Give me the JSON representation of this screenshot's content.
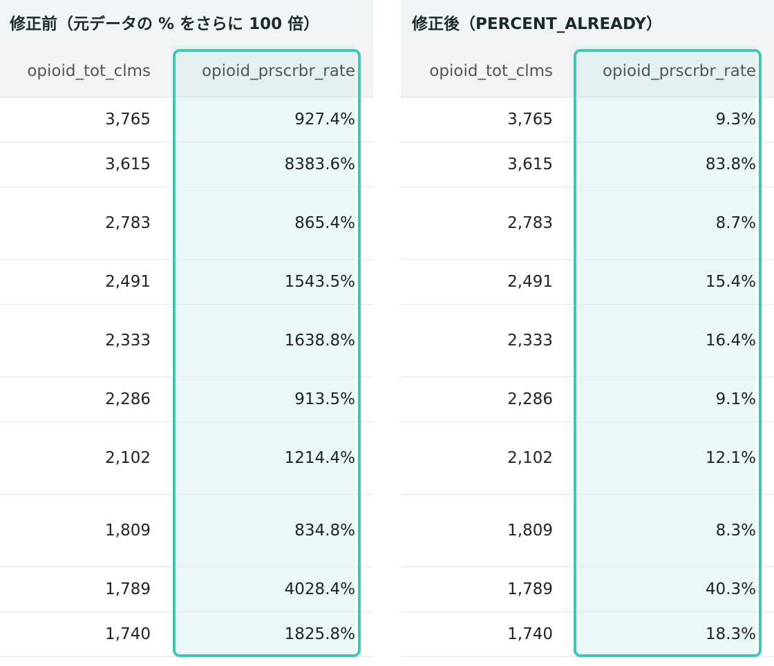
{
  "panels": [
    {
      "title": "修正前（元データの % をさらに 100 倍）",
      "columns": [
        "opioid_tot_clms",
        "opioid_prscrbr_rate"
      ],
      "rows": [
        [
          "3,765",
          "927.4%"
        ],
        [
          "3,615",
          "8383.6%"
        ],
        [
          "2,783",
          "865.4%"
        ],
        [
          "2,491",
          "1543.5%"
        ],
        [
          "2,333",
          "1638.8%"
        ],
        [
          "2,286",
          "913.5%"
        ],
        [
          "2,102",
          "1214.4%"
        ],
        [
          "1,809",
          "834.8%"
        ],
        [
          "1,789",
          "4028.4%"
        ],
        [
          "1,740",
          "1825.8%"
        ]
      ]
    },
    {
      "title": "修正後（PERCENT_ALREADY）",
      "columns": [
        "opioid_tot_clms",
        "opioid_prscrbr_rate"
      ],
      "rows": [
        [
          "3,765",
          "9.3%"
        ],
        [
          "3,615",
          "83.8%"
        ],
        [
          "2,783",
          "8.7%"
        ],
        [
          "2,491",
          "15.4%"
        ],
        [
          "2,333",
          "16.4%"
        ],
        [
          "2,286",
          "9.1%"
        ],
        [
          "2,102",
          "12.1%"
        ],
        [
          "1,809",
          "8.3%"
        ],
        [
          "1,789",
          "40.3%"
        ],
        [
          "1,740",
          "18.3%"
        ]
      ]
    }
  ],
  "colors": {
    "highlight_border": "#40c6b6",
    "highlight_fill": "#e9f7f6",
    "title_background": "#f1f4f4",
    "header_background": "#f3f3f3"
  }
}
